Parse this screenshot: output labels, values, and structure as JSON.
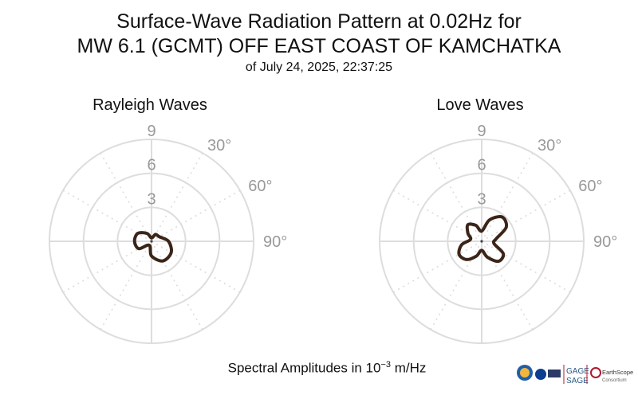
{
  "title": {
    "line1": "Surface-Wave Radiation Pattern at 0.02Hz for",
    "line2": "MW 6.1 (GCMT) OFF EAST COAST OF KAMCHATKA",
    "line3": "of July 24, 2025, 22:37:25"
  },
  "footer": {
    "prefix": "Spectral Amplitudes in 10",
    "exponent": "−3",
    "suffix": " m/Hz"
  },
  "logos": {
    "gage": "GAGE",
    "sage": "SAGE",
    "earthscope": "EarthScope",
    "consortium": "Consortium"
  },
  "colors": {
    "curve": "#3b2418",
    "grid": "#dddddd",
    "tick_text": "#999999"
  },
  "chart_data": [
    {
      "type": "polar-line",
      "title": "Rayleigh Waves",
      "r_ticks": [
        3,
        6,
        9
      ],
      "r_tick_labels": [
        "3",
        "6",
        "9"
      ],
      "r_max": 9,
      "angle_labels": [
        "30°",
        "60°",
        "90°"
      ],
      "theta_zero": "N",
      "theta_direction": "clockwise",
      "grid": true,
      "series": [
        {
          "theta_deg": [
            0,
            30,
            60,
            90,
            120,
            150,
            180,
            210,
            240,
            270,
            300,
            330
          ],
          "r": [
            0.3,
            0.7,
            0.8,
            1.5,
            2.0,
            2.0,
            1.3,
            0.4,
            1.3,
            1.5,
            1.4,
            0.8
          ]
        }
      ]
    },
    {
      "type": "polar-line",
      "title": "Love Waves",
      "r_ticks": [
        3,
        6,
        9
      ],
      "r_tick_labels": [
        "3",
        "6",
        "9"
      ],
      "r_max": 9,
      "angle_labels": [
        "30°",
        "60°",
        "90°"
      ],
      "theta_zero": "N",
      "theta_direction": "clockwise",
      "grid": true,
      "series": [
        {
          "theta_deg": [
            0,
            20,
            40,
            60,
            80,
            100,
            120,
            140,
            160,
            180,
            200,
            220,
            240,
            260,
            280,
            300,
            320,
            340
          ],
          "r": [
            0.9,
            2.0,
            2.8,
            2.5,
            1.3,
            1.1,
            2.2,
            2.3,
            1.5,
            0.8,
            1.4,
            2.1,
            2.3,
            1.8,
            1.0,
            1.4,
            1.9,
            1.5
          ]
        }
      ]
    }
  ]
}
